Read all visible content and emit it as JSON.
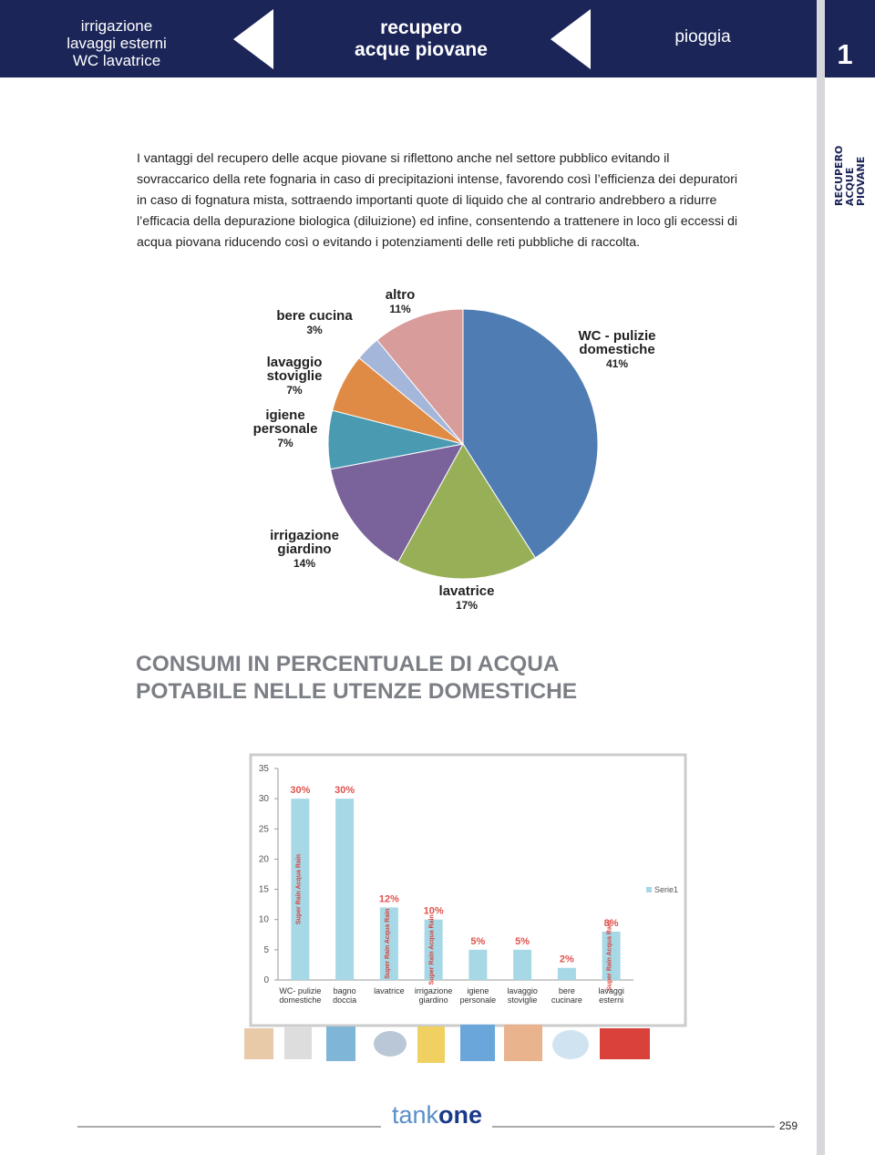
{
  "header": {
    "left": [
      "irrigazione",
      "lavaggi esterni",
      "WC lavatrice"
    ],
    "center": [
      "recupero",
      "acque piovane"
    ],
    "right": "pioggia",
    "section": "1"
  },
  "side_tab": [
    "RECUPERO",
    "ACQUE PIOVANE"
  ],
  "intro": "I vantaggi del recupero delle acque piovane si riflettono anche nel settore pubblico evitando il sovraccarico della rete fognaria in caso di precipitazioni intense, favorendo  così l’efficienza dei depuratori in caso di fognatura mista,  sottraendo importanti  quote di liquido che al contrario andrebbero a ridurre l’efficacia della depurazione biologica (diluizione) ed infine, consentendo a trattenere in loco gli eccessi di acqua piovana riducendo così o evitando i potenziamenti delle reti pubbliche di raccolta.",
  "chart_data": [
    {
      "type": "pie",
      "title": "CONSUMI IN PERCENTUALE DI ACQUA POTABILE NELLE UTENZE DOMESTICHE",
      "categories": [
        "WC - pulizie domestiche",
        "lavatrice",
        "irrigazione giardino",
        "igiene personale",
        "lavaggio stoviglie",
        "bere cucina",
        "altro"
      ],
      "values": [
        41,
        17,
        14,
        7,
        7,
        3,
        11
      ],
      "value_labels": [
        "41%",
        "17%",
        "14%",
        "7%",
        "7%",
        "3%",
        "11%"
      ],
      "colors": [
        "#4f7db3",
        "#97b058",
        "#7a629a",
        "#4a9bb2",
        "#e08b45",
        "#a4b7da",
        "#d89c9a"
      ]
    },
    {
      "type": "bar",
      "categories": [
        "WC- pulizie domestiche",
        "bagno doccia",
        "lavatrice",
        "irrigazione giardino",
        "igiene personale",
        "lavaggio stoviglie",
        "bere cucinare",
        "lavaggi esterni"
      ],
      "series": [
        {
          "name": "Serie1",
          "color": "#a6d8e6",
          "values": [
            30,
            30,
            12,
            10,
            5,
            5,
            2,
            8
          ],
          "value_labels": [
            "30%",
            "30%",
            "12%",
            "10%",
            "5%",
            "5%",
            "2%",
            "8%"
          ],
          "bar_labels": [
            "Super Rain Acqua Rain",
            null,
            "Super Rain Acqua Rain",
            "Super Rain Acqua Rain",
            null,
            null,
            null,
            "Super Rain Acqua Rain"
          ]
        }
      ],
      "ylim": [
        0,
        35
      ],
      "yticks": [
        0,
        5,
        10,
        15,
        20,
        25,
        30,
        35
      ],
      "grid": false,
      "legend": "right"
    }
  ],
  "footer": {
    "brand_light": "tank",
    "brand_bold": "one",
    "page": "259"
  }
}
